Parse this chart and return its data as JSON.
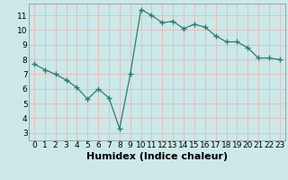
{
  "x": [
    0,
    1,
    2,
    3,
    4,
    5,
    6,
    7,
    8,
    9,
    10,
    11,
    12,
    13,
    14,
    15,
    16,
    17,
    18,
    19,
    20,
    21,
    22,
    23
  ],
  "y": [
    7.7,
    7.3,
    7.0,
    6.6,
    6.1,
    5.3,
    6.0,
    5.4,
    3.3,
    7.0,
    11.4,
    11.0,
    10.5,
    10.6,
    10.1,
    10.4,
    10.2,
    9.6,
    9.2,
    9.2,
    8.8,
    8.1,
    8.1,
    8.0
  ],
  "line_color": "#2e7d70",
  "marker": "+",
  "marker_size": 4,
  "bg_color": "#cce8e8",
  "grid_color": "#e8b8b8",
  "xlabel": "Humidex (Indice chaleur)",
  "xlim": [
    -0.5,
    23.5
  ],
  "ylim": [
    2.5,
    11.8
  ],
  "yticks": [
    3,
    4,
    5,
    6,
    7,
    8,
    9,
    10,
    11
  ],
  "xticks": [
    0,
    1,
    2,
    3,
    4,
    5,
    6,
    7,
    8,
    9,
    10,
    11,
    12,
    13,
    14,
    15,
    16,
    17,
    18,
    19,
    20,
    21,
    22,
    23
  ],
  "tick_fontsize": 6.5,
  "xlabel_fontsize": 8.0
}
